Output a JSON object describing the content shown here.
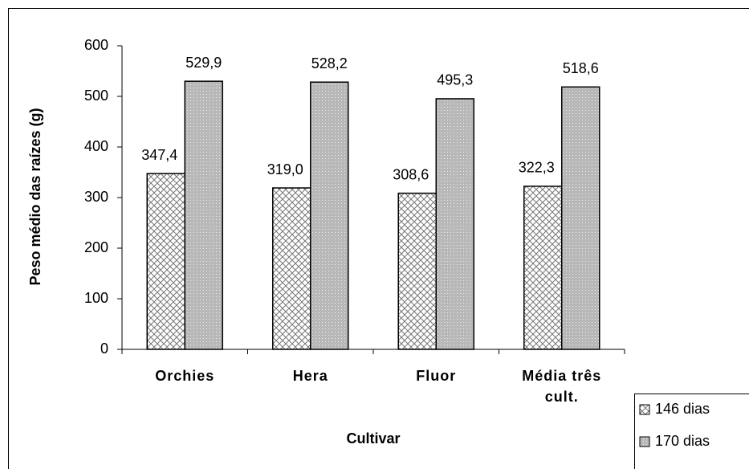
{
  "chart_data": {
    "type": "bar",
    "x_label": "Cultivar",
    "y_label": "Peso médio das raízes (g)",
    "categories": [
      "Orchies",
      "Hera",
      "Fluor",
      "Média três cult."
    ],
    "series": [
      {
        "name": "146 dias",
        "color": "#d0d0d0",
        "values": [
          347.4,
          319.0,
          308.6,
          322.3
        ],
        "value_labels": [
          "347,4",
          "319,0",
          "308,6",
          "322,3"
        ]
      },
      {
        "name": "170 dias",
        "color": "#b8b8b8",
        "values": [
          529.9,
          528.2,
          495.3,
          518.6
        ],
        "value_labels": [
          "529,9",
          "528,2",
          "495,3",
          "518,6"
        ]
      }
    ],
    "ylim": [
      0,
      600
    ],
    "yticks": [
      0,
      100,
      200,
      300,
      400,
      500,
      600
    ],
    "grid": false,
    "legend": "bottom-right"
  }
}
